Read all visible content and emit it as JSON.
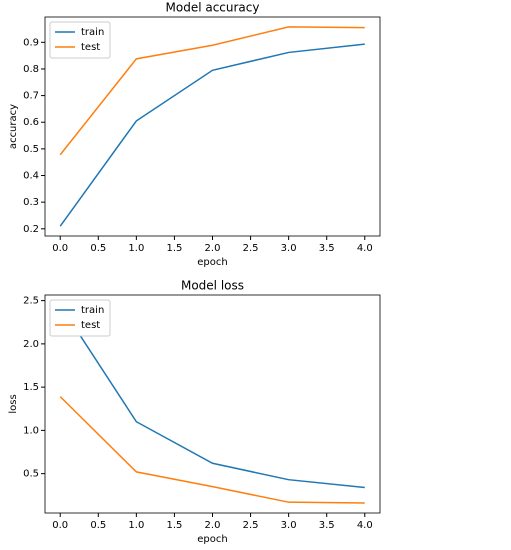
{
  "chart_data": [
    {
      "type": "line",
      "title": "Model accuracy",
      "x_label": "epoch",
      "y_label": "accuracy",
      "x": [
        0,
        1,
        2,
        3,
        4
      ],
      "series": [
        {
          "name": "train",
          "color": "#1f77b4",
          "values": [
            0.21,
            0.605,
            0.795,
            0.862,
            0.893
          ]
        },
        {
          "name": "test",
          "color": "#ff7f0e",
          "values": [
            0.478,
            0.838,
            0.889,
            0.958,
            0.955
          ]
        }
      ],
      "xlim": [
        -0.2,
        4.2
      ],
      "xticks": [
        {
          "value": 0,
          "label": "0.0"
        },
        0.5,
        {
          "value": 1,
          "label": "1.0"
        },
        1.5,
        {
          "value": 2,
          "label": "2.0"
        },
        2.5,
        {
          "value": 3,
          "label": "3.0"
        },
        3.5,
        {
          "value": 4,
          "label": "4.0"
        }
      ],
      "ylim": [
        0.173,
        0.995
      ],
      "yticks": [
        0.2,
        0.3,
        0.4,
        0.5,
        0.6,
        0.7,
        0.8,
        0.9
      ],
      "legend": "upper left"
    },
    {
      "type": "line",
      "title": "Model loss",
      "x_label": "epoch",
      "y_label": "loss",
      "x": [
        0,
        1,
        2,
        3,
        4
      ],
      "series": [
        {
          "name": "train",
          "color": "#1f77b4",
          "values": [
            2.45,
            1.1,
            0.62,
            0.43,
            0.34
          ]
        },
        {
          "name": "test",
          "color": "#ff7f0e",
          "values": [
            1.39,
            0.52,
            0.35,
            0.17,
            0.16
          ]
        }
      ],
      "xlim": [
        -0.2,
        4.2
      ],
      "xticks": [
        {
          "value": 0,
          "label": "0.0"
        },
        0.5,
        {
          "value": 1,
          "label": "1.0"
        },
        1.5,
        {
          "value": 2,
          "label": "2.0"
        },
        2.5,
        {
          "value": 3,
          "label": "3.0"
        },
        3.5,
        {
          "value": 4,
          "label": "4.0"
        }
      ],
      "ylim": [
        0.045,
        2.565
      ],
      "yticks": [
        0.5,
        {
          "value": 1,
          "label": "1.0"
        },
        1.5,
        {
          "value": 2,
          "label": "2.0"
        },
        2.5
      ],
      "legend": "upper left"
    }
  ]
}
